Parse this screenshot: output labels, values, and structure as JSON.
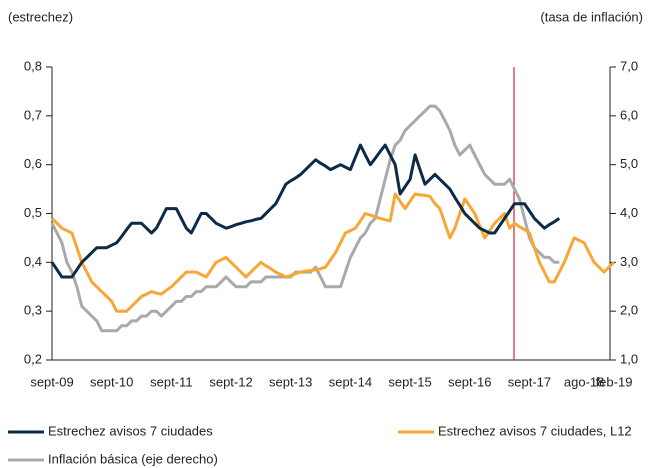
{
  "chart_data": {
    "type": "line",
    "y_label": "(estrechez)",
    "y2_label": "(tasa de inflación)",
    "categories": [
      "sept-09",
      null,
      null,
      null,
      null,
      null,
      null,
      null,
      null,
      null,
      null,
      null,
      "sept-10",
      null,
      null,
      null,
      null,
      null,
      null,
      null,
      null,
      null,
      null,
      null,
      "sept-11",
      null,
      null,
      null,
      null,
      null,
      null,
      null,
      null,
      null,
      null,
      null,
      "sept-12",
      null,
      null,
      null,
      null,
      null,
      null,
      null,
      null,
      null,
      null,
      null,
      "sept-13",
      null,
      null,
      null,
      null,
      null,
      null,
      null,
      null,
      null,
      null,
      null,
      "sept-14",
      null,
      null,
      null,
      null,
      null,
      null,
      null,
      null,
      null,
      null,
      null,
      "sept-15",
      null,
      null,
      null,
      null,
      null,
      null,
      null,
      null,
      null,
      null,
      null,
      "sept-16",
      null,
      null,
      null,
      null,
      null,
      null,
      null,
      null,
      null,
      null,
      null,
      "sept-17",
      null,
      null,
      null,
      null,
      null,
      null,
      null,
      null,
      null,
      null,
      "ago-18",
      null,
      null,
      null,
      null,
      null,
      "feb-19"
    ],
    "series": [
      {
        "name": "Estrechez avisos 7 ciudades",
        "color": "#0d2a47",
        "values": [
          0.4,
          0.385,
          0.37,
          0.37,
          0.37,
          0.385,
          0.4,
          0.41,
          0.42,
          0.43,
          0.43,
          0.43,
          0.435,
          0.44,
          0.453,
          0.467,
          0.48,
          0.48,
          0.48,
          0.47,
          0.46,
          0.47,
          0.49,
          0.51,
          0.51,
          0.51,
          0.49,
          0.47,
          0.46,
          0.48,
          0.5,
          0.5,
          0.49,
          0.48,
          0.475,
          0.47,
          0.473,
          0.477,
          0.48,
          0.483,
          0.485,
          0.488,
          0.49,
          0.5,
          0.51,
          0.52,
          0.54,
          0.56,
          0.567,
          0.573,
          0.58,
          0.59,
          0.6,
          0.61,
          0.603,
          0.597,
          0.59,
          0.595,
          0.6,
          0.595,
          0.59,
          0.615,
          0.64,
          0.62,
          0.6,
          0.613,
          0.627,
          0.64,
          0.62,
          0.6,
          0.54,
          0.555,
          0.57,
          0.62,
          0.59,
          0.56,
          0.57,
          0.58,
          0.57,
          0.56,
          0.55,
          0.533,
          0.517,
          0.5,
          0.49,
          0.48,
          0.47,
          0.465,
          0.46,
          0.46,
          0.475,
          0.49,
          0.505,
          0.52,
          0.52,
          0.52,
          0.505,
          0.49,
          0.48,
          0.47,
          0.477,
          0.483,
          0.49,
          null,
          null,
          null,
          null,
          null,
          null,
          null,
          null,
          null,
          null,
          null
        ]
      },
      {
        "name": "Estrechez avisos 7 ciudades, L12",
        "color": "#f7a733",
        "values": [
          0.49,
          0.48,
          0.47,
          0.465,
          0.46,
          0.43,
          0.4,
          0.38,
          0.36,
          0.35,
          0.34,
          0.33,
          0.32,
          0.3,
          0.3,
          0.3,
          0.31,
          0.32,
          0.33,
          0.335,
          0.34,
          0.337,
          0.335,
          0.343,
          0.35,
          0.36,
          0.37,
          0.38,
          0.38,
          0.38,
          0.375,
          0.37,
          0.385,
          0.4,
          0.405,
          0.41,
          0.4,
          0.39,
          0.38,
          0.37,
          0.38,
          0.39,
          0.4,
          0.393,
          0.387,
          0.38,
          0.375,
          0.37,
          0.373,
          0.377,
          0.38,
          0.382,
          0.383,
          0.385,
          0.387,
          0.39,
          0.405,
          0.42,
          0.44,
          0.46,
          0.465,
          0.47,
          0.485,
          0.5,
          0.497,
          0.493,
          0.49,
          0.487,
          0.485,
          0.54,
          0.525,
          0.51,
          0.525,
          0.54,
          0.538,
          0.537,
          0.535,
          0.52,
          0.51,
          0.48,
          0.45,
          0.47,
          0.5,
          0.53,
          0.515,
          0.5,
          0.475,
          0.45,
          0.465,
          0.48,
          0.49,
          0.5,
          0.47,
          0.48,
          0.473,
          0.467,
          0.46,
          0.43,
          0.4,
          0.38,
          0.36,
          0.36,
          0.38,
          0.4,
          0.425,
          0.45,
          0.445,
          0.44,
          0.42,
          0.4,
          0.39,
          0.38,
          0.39,
          0.4
        ]
      },
      {
        "name": "Inflación básica (eje derecho)",
        "color": "#a9a9a9",
        "axis": "y2",
        "values": [
          3.8,
          3.6,
          3.4,
          3.0,
          2.8,
          2.5,
          2.1,
          2.0,
          1.9,
          1.8,
          1.6,
          1.6,
          1.6,
          1.6,
          1.7,
          1.7,
          1.8,
          1.8,
          1.9,
          1.9,
          2.0,
          2.0,
          1.9,
          2.0,
          2.1,
          2.2,
          2.2,
          2.3,
          2.3,
          2.4,
          2.4,
          2.5,
          2.5,
          2.5,
          2.6,
          2.7,
          2.6,
          2.5,
          2.5,
          2.5,
          2.6,
          2.6,
          2.6,
          2.7,
          2.7,
          2.7,
          2.7,
          2.7,
          2.7,
          2.8,
          2.8,
          2.8,
          2.8,
          2.9,
          2.7,
          2.5,
          2.5,
          2.5,
          2.5,
          2.8,
          3.1,
          3.3,
          3.5,
          3.6,
          3.8,
          3.9,
          4.3,
          4.7,
          5.1,
          5.4,
          5.5,
          5.7,
          5.8,
          5.9,
          6.0,
          6.1,
          6.2,
          6.2,
          6.1,
          5.9,
          5.7,
          5.4,
          5.2,
          5.3,
          5.4,
          5.2,
          5.0,
          4.8,
          4.7,
          4.6,
          4.6,
          4.6,
          4.7,
          4.5,
          4.3,
          3.9,
          3.5,
          3.3,
          3.2,
          3.1,
          3.1,
          3.0,
          3.0,
          null,
          null,
          null,
          null,
          null,
          null,
          null,
          null,
          null,
          null,
          null
        ]
      }
    ],
    "ylim": [
      0.2,
      0.8
    ],
    "yticks": [
      {
        "value": 0.2,
        "label": "0,2"
      },
      {
        "value": 0.3,
        "label": "0,3"
      },
      {
        "value": 0.4,
        "label": "0,4"
      },
      {
        "value": 0.5,
        "label": "0,5"
      },
      {
        "value": 0.6,
        "label": "0,6"
      },
      {
        "value": 0.7,
        "label": "0,7"
      },
      {
        "value": 0.8,
        "label": "0,8"
      }
    ],
    "y2lim": [
      1.0,
      7.0
    ],
    "y2ticks": [
      {
        "value": 1.0,
        "label": "1,0"
      },
      {
        "value": 2.0,
        "label": "2,0"
      },
      {
        "value": 3.0,
        "label": "3,0"
      },
      {
        "value": 4.0,
        "label": "4,0"
      },
      {
        "value": 5.0,
        "label": "5,0"
      },
      {
        "value": 6.0,
        "label": "6,0"
      },
      {
        "value": 7.0,
        "label": "7,0"
      }
    ],
    "grid": false
  }
}
